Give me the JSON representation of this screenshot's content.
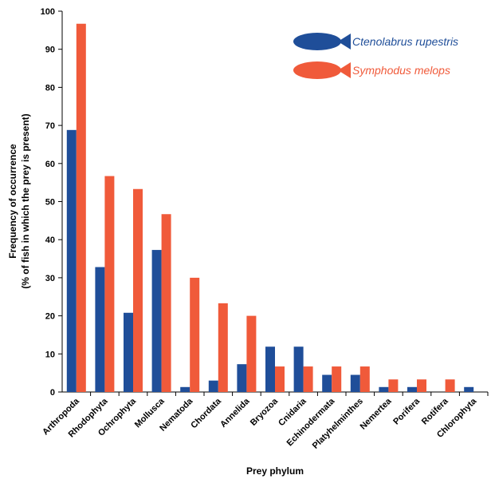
{
  "chart_data": {
    "type": "bar",
    "xlabel": "Prey phylum",
    "ylabel": [
      "Frequency of occurrence",
      "(% of fish in which the prey is present)"
    ],
    "categories": [
      "Arthropoda",
      "Rhodophyta",
      "Ochrophyta",
      "Mollusca",
      "Nematoda",
      "Chordata",
      "Annelida",
      "Bryozoa",
      "Cnidaria",
      "Echinodermata",
      "Platyhelminthes",
      "Nemertea",
      "Porifera",
      "Rotifera",
      "Chlorophyta"
    ],
    "series": [
      {
        "name": "Ctenolabrus rupestris",
        "color": "#1f4e99",
        "values": [
          68.8,
          32.8,
          20.8,
          37.3,
          1.3,
          3.0,
          7.3,
          11.9,
          11.9,
          4.5,
          4.5,
          1.3,
          1.3,
          0,
          1.3
        ]
      },
      {
        "name": "Symphodus melops",
        "color": "#f05a3a",
        "values": [
          96.7,
          56.7,
          53.3,
          46.7,
          30.0,
          23.3,
          20.0,
          6.7,
          6.7,
          6.7,
          6.7,
          3.3,
          3.3,
          3.3,
          0
        ]
      }
    ],
    "ylim": [
      0,
      100
    ],
    "yticks": [
      0,
      10,
      20,
      30,
      40,
      50,
      60,
      70,
      80,
      90,
      100
    ],
    "grid": false,
    "legend": "upper right"
  }
}
